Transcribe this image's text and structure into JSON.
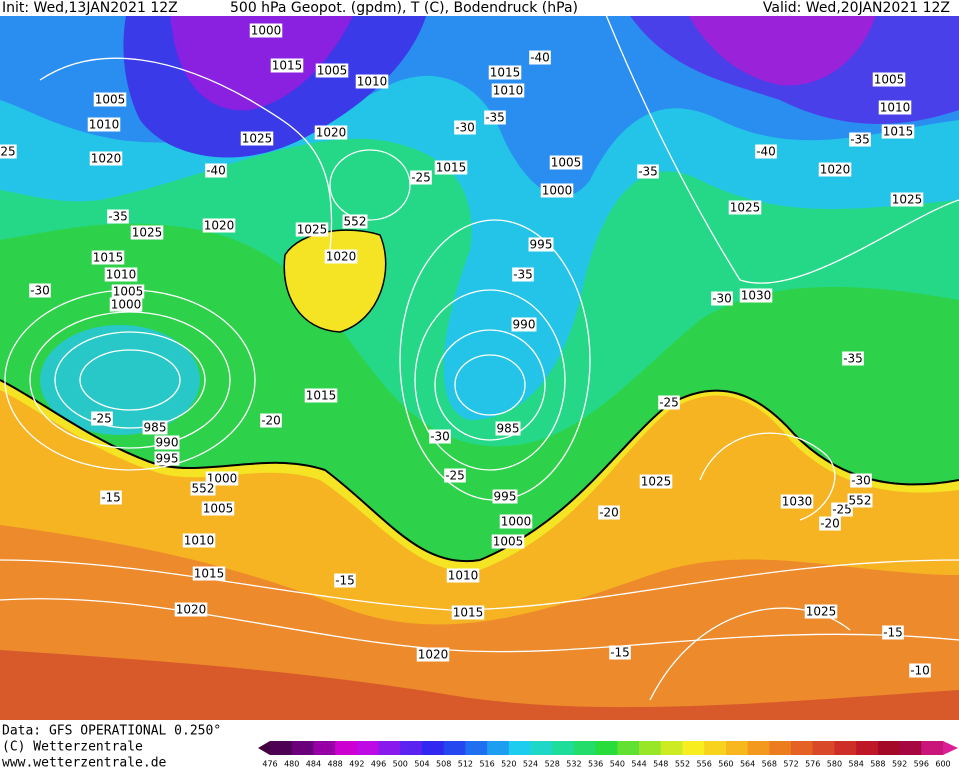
{
  "header": {
    "init": "Init: Wed,13JAN2021 12Z",
    "title": "500 hPa Geopot. (gpdm), T (C), Bodendruck (hPa)",
    "valid": "Valid: Wed,20JAN2021 12Z"
  },
  "footer": {
    "data": "Data: GFS OPERATIONAL 0.250°",
    "copyright": "(C) Wetterzentrale",
    "url": "www.wetterzentrale.de"
  },
  "colorbar": {
    "labels": [
      476,
      480,
      484,
      488,
      492,
      496,
      500,
      504,
      508,
      512,
      516,
      520,
      524,
      528,
      532,
      536,
      540,
      544,
      548,
      552,
      556,
      560,
      564,
      568,
      572,
      576,
      580,
      584,
      588,
      592,
      596,
      600
    ]
  },
  "map_labels": [
    "1000",
    "1015",
    "1005",
    "1010",
    "1005",
    "1010",
    "1025",
    "1020",
    "-40",
    "1020",
    "-35",
    "1025",
    "1020",
    "1015",
    "1010",
    "1005",
    "1000",
    "-30",
    "1025",
    "1020",
    "552",
    "1015",
    "-25",
    "-30",
    "-35",
    "1015",
    "1010",
    "-40",
    "1005",
    "1000",
    "995",
    "-35",
    "990",
    "985",
    "-30",
    "-25",
    "995",
    "1000",
    "1005",
    "1010",
    "1015",
    "1020",
    "1015",
    "-20",
    "985",
    "990",
    "995",
    "-25",
    "1000",
    "552",
    "1005",
    "-15",
    "1010",
    "1015",
    "1020",
    "-15",
    "-25",
    "1025",
    "-20",
    "1030",
    "-25",
    "-20",
    "552",
    "-30",
    "-35",
    "-30",
    "1030",
    "-35",
    "1025",
    "1025",
    "1020",
    "-40",
    "-35",
    "1015",
    "1010",
    "1005",
    "1025",
    "-15",
    "-10",
    "-15",
    "25"
  ]
}
